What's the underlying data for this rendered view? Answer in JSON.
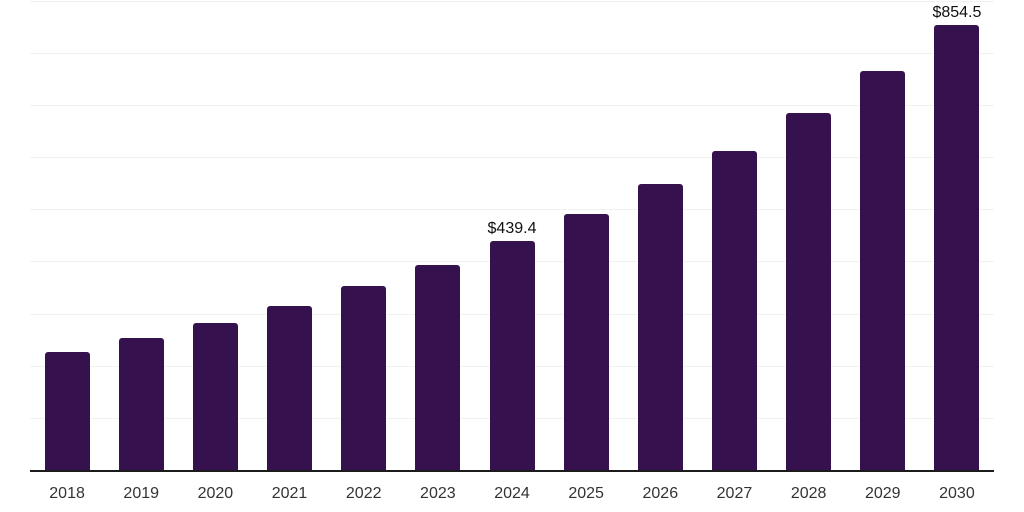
{
  "chart_data": {
    "type": "bar",
    "title": "",
    "xlabel": "",
    "ylabel": "",
    "categories": [
      "2018",
      "2019",
      "2020",
      "2021",
      "2022",
      "2023",
      "2024",
      "2025",
      "2026",
      "2027",
      "2028",
      "2029",
      "2030"
    ],
    "values": [
      225.8,
      252.3,
      281.9,
      315.0,
      352.0,
      393.3,
      439.4,
      490.9,
      548.5,
      612.8,
      684.6,
      764.9,
      854.5
    ],
    "bar_value_labels": [
      "",
      "",
      "",
      "",
      "",
      "",
      "$439.4",
      "",
      "",
      "",
      "",
      "",
      "$854.5"
    ],
    "value_prefix": "$",
    "ylim": [
      0,
      900
    ],
    "gridline_interval": 100,
    "grid": "horizontal",
    "legend_position": "none",
    "colors": {
      "bar": "#35124d",
      "gridline": "#f1f1f1",
      "axis": "#1b1b1b",
      "tick_label": "#333333",
      "value_label": "#111111",
      "background": "#ffffff"
    }
  }
}
